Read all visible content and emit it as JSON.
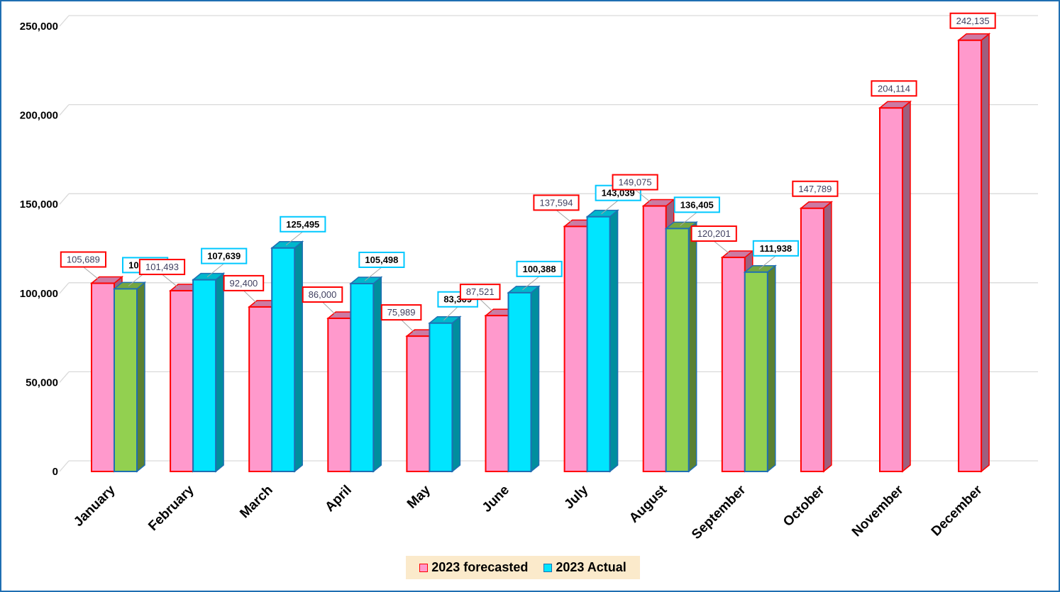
{
  "chart_data": {
    "type": "bar",
    "title": "",
    "xlabel": "",
    "ylabel": "",
    "ylim": [
      0,
      250000
    ],
    "yticks": [
      0,
      50000,
      100000,
      150000,
      200000,
      250000
    ],
    "ytick_labels": [
      "0",
      "50,000",
      "100,000",
      "150,000",
      "200,000",
      "250,000"
    ],
    "grid": true,
    "legend_position": "bottom",
    "categories": [
      "January",
      "February",
      "March",
      "April",
      "May",
      "June",
      "July",
      "August",
      "September",
      "October",
      "November",
      "December"
    ],
    "series": [
      {
        "name": "2023 forecasted",
        "color": "#ff99cc",
        "edge_color": "#ff0000",
        "values": [
          105689,
          101493,
          92400,
          86000,
          75989,
          87521,
          137594,
          149075,
          120201,
          147789,
          204114,
          242135
        ],
        "labels": [
          "105,689",
          "101,493",
          "92,400",
          "86,000",
          "75,989",
          "87,521",
          "137,594",
          "149,075",
          "120,201",
          "147,789",
          "204,114",
          "242,135"
        ]
      },
      {
        "name": "2023 Actual",
        "color": "#00e5ff",
        "edge_color": "#1f6fb2",
        "highlight_color": "#92d050",
        "highlighted_categories": [
          "January",
          "August",
          "September"
        ],
        "values": [
          102545,
          107639,
          125495,
          105498,
          83309,
          100388,
          143039,
          136405,
          111938,
          null,
          null,
          null
        ],
        "labels": [
          "102,545",
          "107,639",
          "125,495",
          "105,498",
          "83,309",
          "100,388",
          "143,039",
          "136,405",
          "111,938",
          null,
          null,
          null
        ]
      }
    ]
  },
  "legend": {
    "forecast_label": "2023 forecasted",
    "actual_label": "2023 Actual"
  }
}
